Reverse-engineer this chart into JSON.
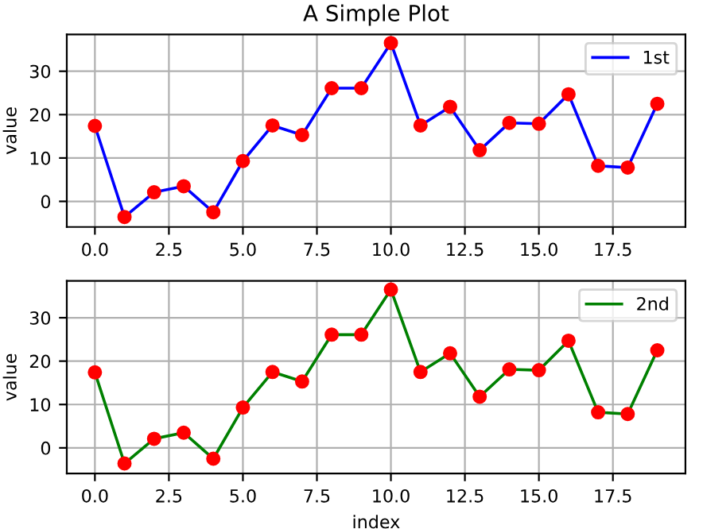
{
  "chart_data": [
    {
      "type": "line",
      "title": "A Simple Plot",
      "ylabel": "value",
      "x": [
        0,
        1,
        2,
        3,
        4,
        5,
        6,
        7,
        8,
        9,
        10,
        11,
        12,
        13,
        14,
        15,
        16,
        17,
        18,
        19
      ],
      "series": [
        {
          "name": "1st",
          "color": "#0000ff",
          "colors": [
            "#ff0000",
            "#ff0000",
            "#ff0000",
            "#ff0000",
            "#ff0000",
            "#ff0000",
            "#ff0000",
            "#ff0000",
            "#ff0000",
            "#ff0000",
            "#ff0000",
            "#ff0000",
            "#ff0000",
            "#ff0000",
            "#ff0000",
            "#ff0000",
            "#ff0000",
            "#ff0000",
            "#ff0000",
            "#ff0000"
          ],
          "values": [
            17.4,
            -3.6,
            2.1,
            3.5,
            -2.5,
            9.3,
            17.5,
            15.3,
            26.1,
            26.1,
            36.5,
            17.5,
            21.8,
            11.8,
            18.1,
            17.9,
            24.7,
            8.2,
            7.8,
            22.5
          ]
        }
      ],
      "xlim": [
        -0.95,
        19.95
      ],
      "ylim": [
        -5.9,
        38.5
      ],
      "xticks": [
        {
          "value": 0,
          "label": "0.0"
        },
        {
          "value": 2.5,
          "label": "2.5"
        },
        {
          "value": 5,
          "label": "5.0"
        },
        {
          "value": 7.5,
          "label": "7.5"
        },
        {
          "value": 10,
          "label": "10.0"
        },
        {
          "value": 12.5,
          "label": "12.5"
        },
        {
          "value": 15,
          "label": "15.0"
        },
        {
          "value": 17.5,
          "label": "17.5"
        }
      ],
      "yticks": [
        0,
        10,
        20,
        30
      ],
      "grid": true,
      "legend": "top right",
      "marker": "circle"
    },
    {
      "type": "line",
      "xlabel": "index",
      "ylabel": "value",
      "x": [
        0,
        1,
        2,
        3,
        4,
        5,
        6,
        7,
        8,
        9,
        10,
        11,
        12,
        13,
        14,
        15,
        16,
        17,
        18,
        19
      ],
      "series": [
        {
          "name": "2nd",
          "color": "#008000",
          "colors": [
            "#ff0000",
            "#ff0000",
            "#ff0000",
            "#ff0000",
            "#ff0000",
            "#ff0000",
            "#ff0000",
            "#ff0000",
            "#ff0000",
            "#ff0000",
            "#ff0000",
            "#ff0000",
            "#ff0000",
            "#ff0000",
            "#ff0000",
            "#ff0000",
            "#ff0000",
            "#ff0000",
            "#ff0000",
            "#ff0000"
          ],
          "values": [
            17.4,
            -3.6,
            2.1,
            3.5,
            -2.5,
            9.3,
            17.5,
            15.3,
            26.1,
            26.1,
            36.5,
            17.5,
            21.8,
            11.8,
            18.1,
            17.9,
            24.7,
            8.2,
            7.8,
            22.5
          ]
        }
      ],
      "xlim": [
        -0.95,
        19.95
      ],
      "ylim": [
        -5.9,
        38.5
      ],
      "xticks": [
        {
          "value": 0,
          "label": "0.0"
        },
        {
          "value": 2.5,
          "label": "2.5"
        },
        {
          "value": 5,
          "label": "5.0"
        },
        {
          "value": 7.5,
          "label": "7.5"
        },
        {
          "value": 10,
          "label": "10.0"
        },
        {
          "value": 12.5,
          "label": "12.5"
        },
        {
          "value": 15,
          "label": "15.0"
        },
        {
          "value": 17.5,
          "label": "17.5"
        }
      ],
      "yticks": [
        0,
        10,
        20,
        30
      ],
      "grid": true,
      "legend": "top right",
      "marker": "circle"
    }
  ]
}
